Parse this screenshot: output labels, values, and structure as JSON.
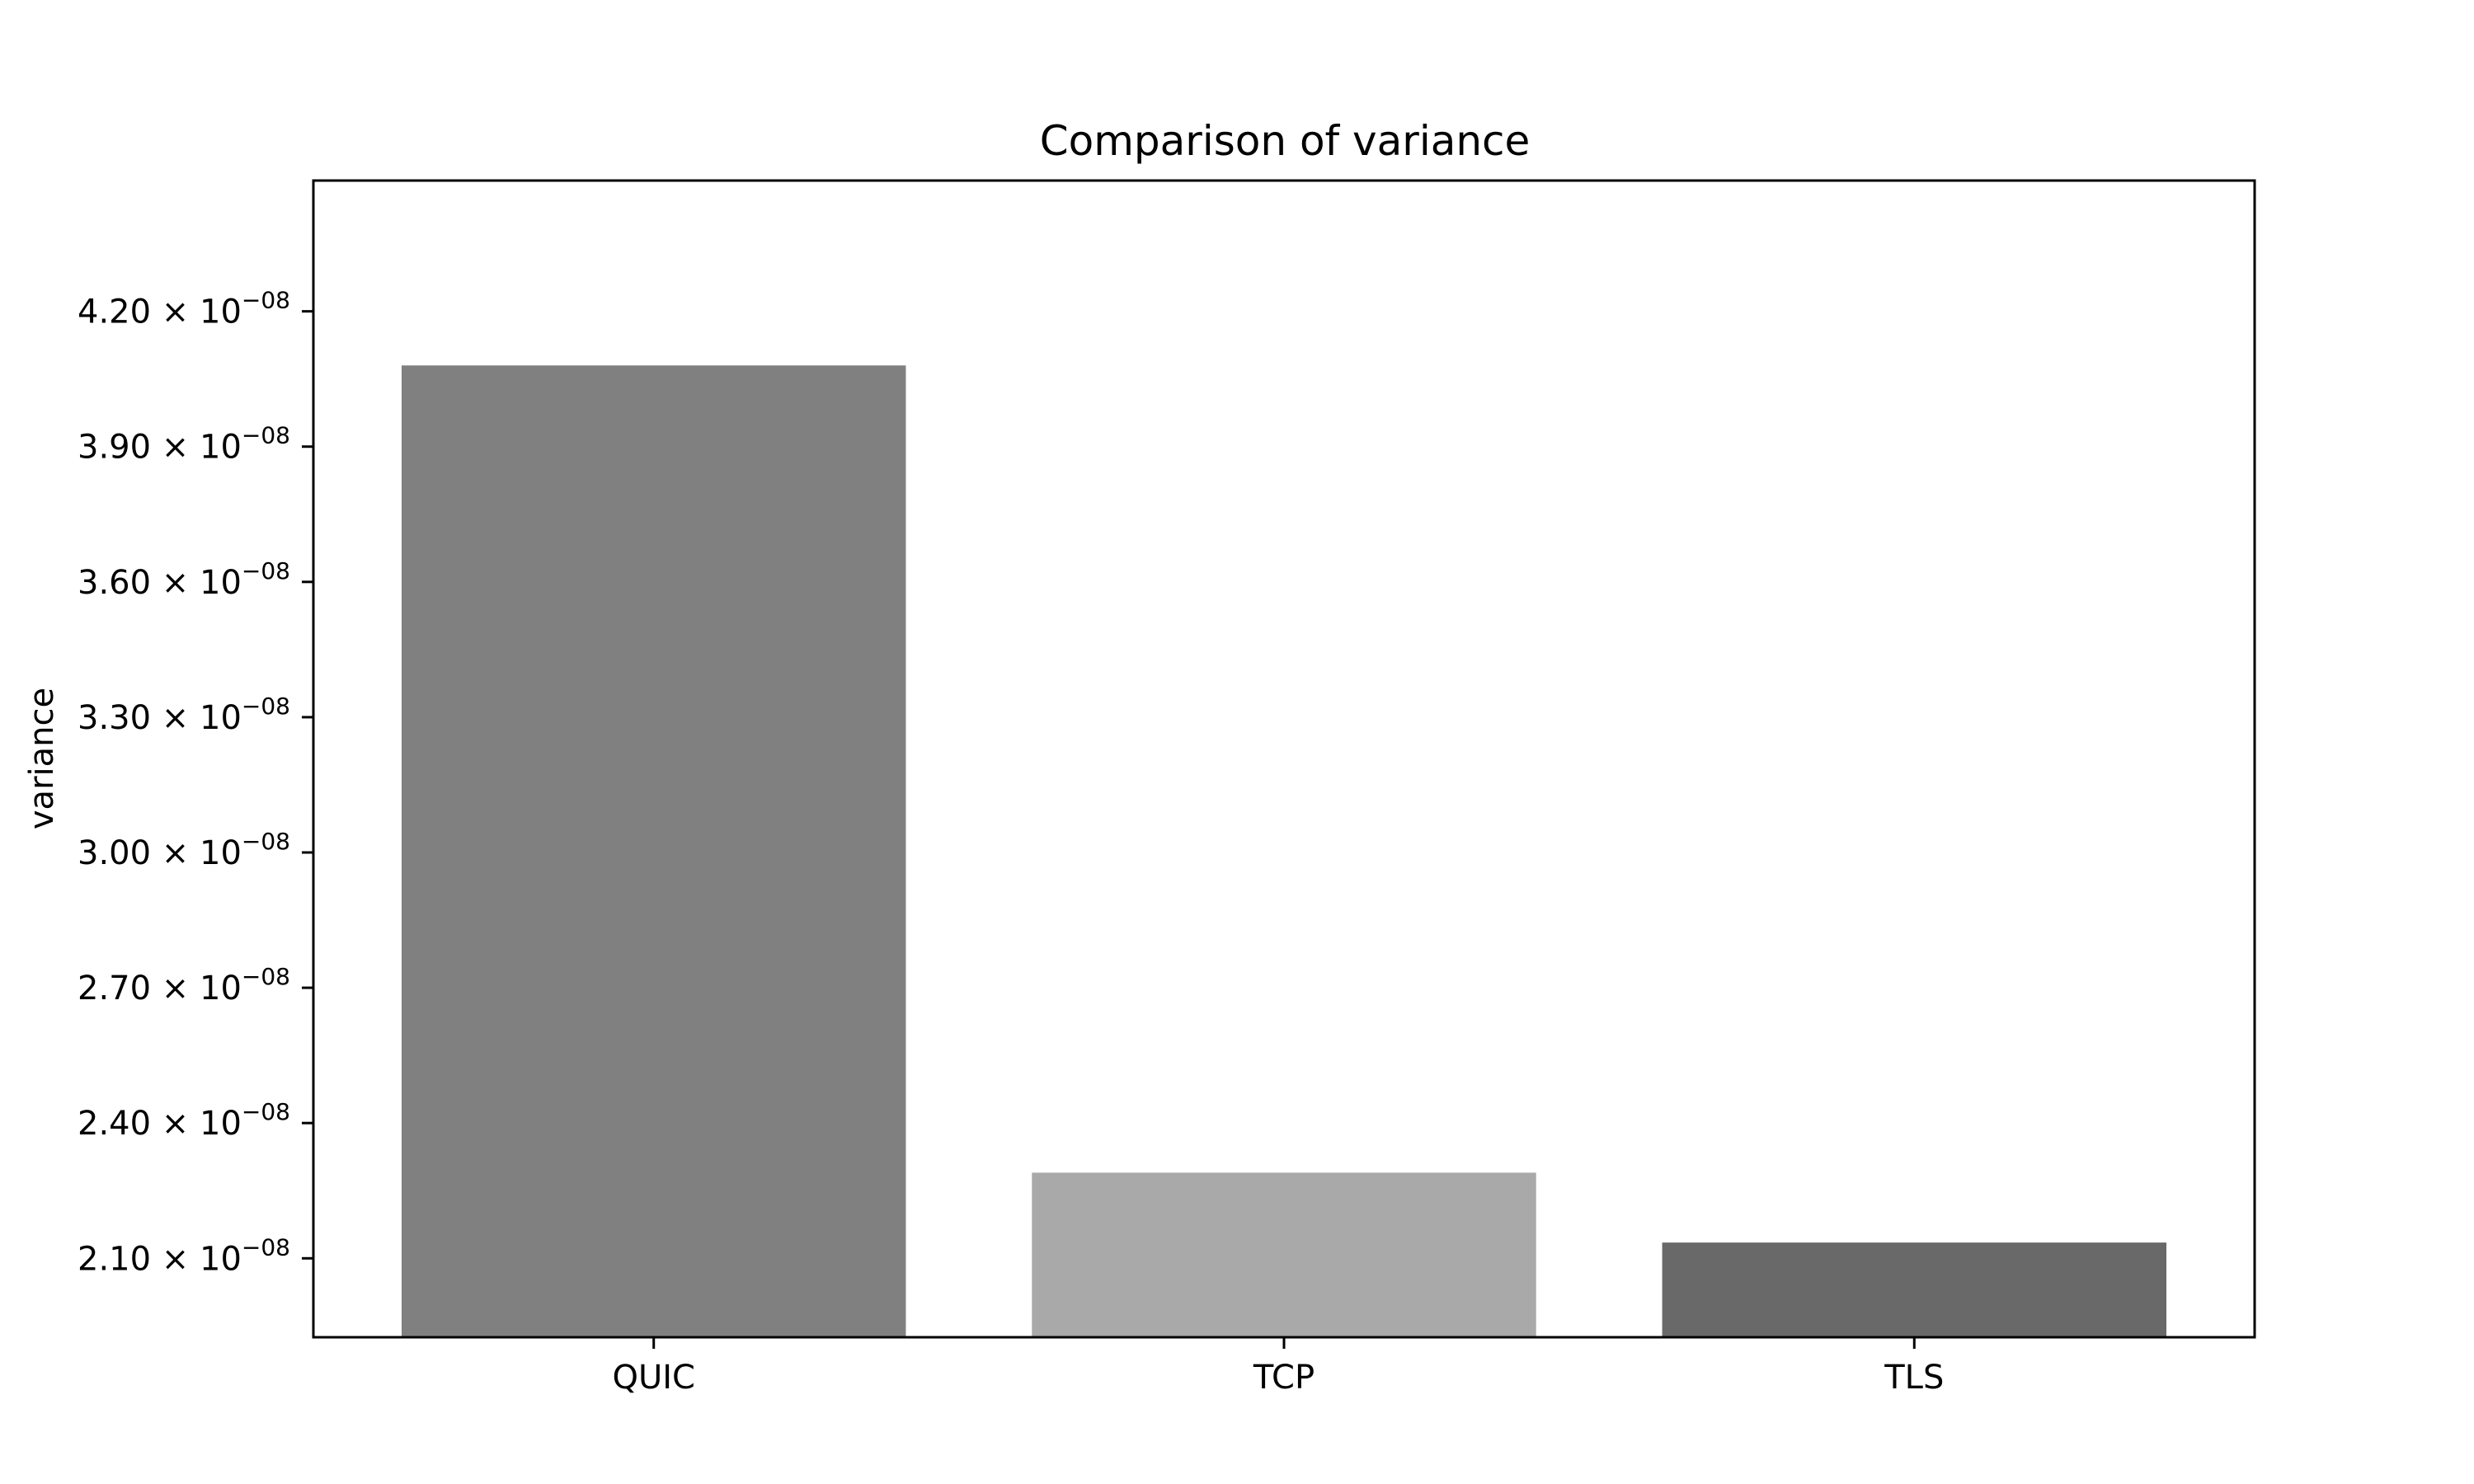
{
  "chart_data": {
    "type": "bar",
    "title": "Comparison of variance",
    "xlabel": "",
    "ylabel": "variance",
    "categories": [
      "QUIC",
      "TCP",
      "TLS"
    ],
    "values": [
      4.08e-08,
      2.29e-08,
      2.135e-08
    ],
    "colors": [
      "#808080",
      "#a9a9a9",
      "#696969"
    ],
    "ylim": [
      1.925e-08,
      4.49e-08
    ],
    "yticks": [
      {
        "value": 2.1e-08,
        "mantissa": "2.10",
        "exponent": "−08"
      },
      {
        "value": 2.4e-08,
        "mantissa": "2.40",
        "exponent": "−08"
      },
      {
        "value": 2.7e-08,
        "mantissa": "2.70",
        "exponent": "−08"
      },
      {
        "value": 3e-08,
        "mantissa": "3.00",
        "exponent": "−08"
      },
      {
        "value": 3.3e-08,
        "mantissa": "3.30",
        "exponent": "−08"
      },
      {
        "value": 3.6e-08,
        "mantissa": "3.60",
        "exponent": "−08"
      },
      {
        "value": 3.9e-08,
        "mantissa": "3.90",
        "exponent": "−08"
      },
      {
        "value": 4.2e-08,
        "mantissa": "4.20",
        "exponent": "−08"
      }
    ],
    "grid": false,
    "legend": "none"
  }
}
